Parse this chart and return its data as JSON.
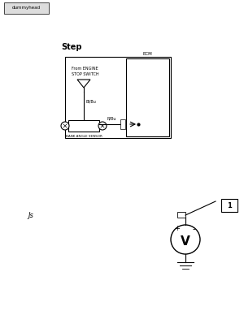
{
  "bg_color": "#ffffff",
  "fg_color": "#000000",
  "header_bg": "#cccccc",
  "dummyhead_text": "dummyhead",
  "step_bold_text": "Step",
  "wire1_label": "Bl/Bu",
  "wire2_label": "R/Bu",
  "ecm_label": "ECM",
  "engine_switch_label": "From ENGINE\nSTOP SWITCH",
  "sensor_label": "BANK ANGLE SENSOR",
  "step_number": "1",
  "step_marker": "Js",
  "voltmeter_label": "V",
  "voltmeter_plus": "+",
  "voltmeter_minus": "-"
}
